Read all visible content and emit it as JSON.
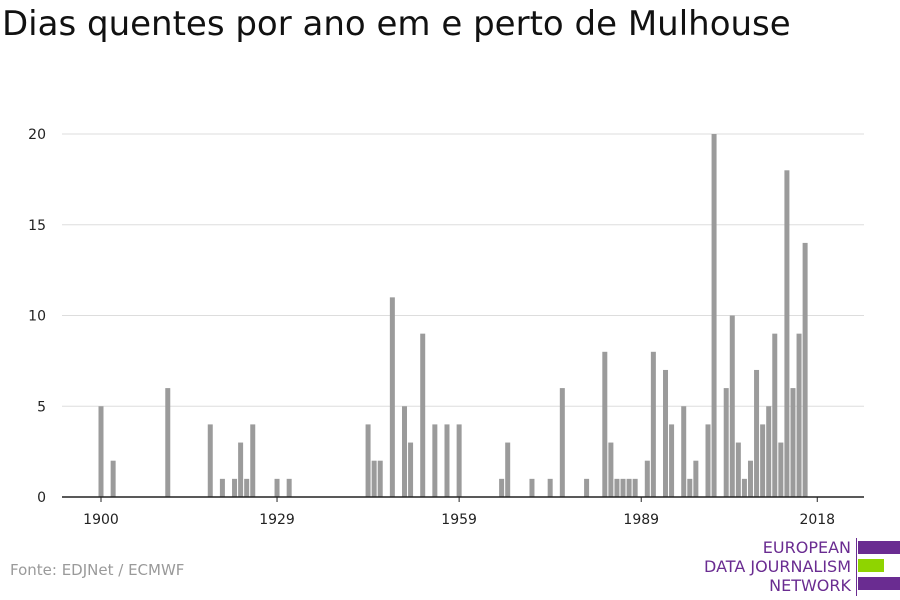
{
  "chart_data": {
    "type": "bar",
    "title": "Dias quentes por ano em e perto de Mulhouse",
    "xlabel": "",
    "ylabel": "",
    "ylim": [
      0,
      20
    ],
    "xlim": [
      1900,
      2018
    ],
    "yticks": [
      0,
      5,
      10,
      15,
      20
    ],
    "xticks": [
      1900,
      1929,
      1959,
      1989,
      2018
    ],
    "grid": true,
    "x": [
      1900,
      1902,
      1911,
      1918,
      1920,
      1922,
      1923,
      1924,
      1925,
      1929,
      1931,
      1944,
      1945,
      1946,
      1948,
      1950,
      1951,
      1953,
      1955,
      1957,
      1959,
      1966,
      1967,
      1971,
      1974,
      1976,
      1980,
      1983,
      1984,
      1985,
      1986,
      1987,
      1988,
      1990,
      1991,
      1993,
      1994,
      1996,
      1997,
      1998,
      2000,
      2001,
      2003,
      2004,
      2005,
      2006,
      2007,
      2008,
      2009,
      2010,
      2011,
      2012,
      2013,
      2014,
      2015,
      2016,
      2017,
      2018
    ],
    "values": [
      5,
      2,
      6,
      4,
      1,
      1,
      3,
      1,
      4,
      1,
      1,
      4,
      2,
      2,
      11,
      5,
      3,
      9,
      4,
      4,
      4,
      1,
      3,
      1,
      1,
      6,
      1,
      8,
      3,
      1,
      1,
      1,
      1,
      2,
      8,
      7,
      4,
      5,
      1,
      2,
      4,
      20,
      6,
      10,
      3,
      1,
      2,
      7,
      4,
      5,
      9,
      3,
      18,
      6,
      9,
      14,
      0,
      0
    ]
  },
  "source": "Fonte: EDJNet / ECMWF",
  "logo": {
    "line1": "EUROPEAN",
    "line2": "DATA JOURNALISM",
    "line3": "NETWORK",
    "purple": "#6a2c91",
    "green": "#8fd400"
  },
  "colors": {
    "bar": "#9b9b9b",
    "grid": "#dddddd",
    "axis": "#222222"
  }
}
